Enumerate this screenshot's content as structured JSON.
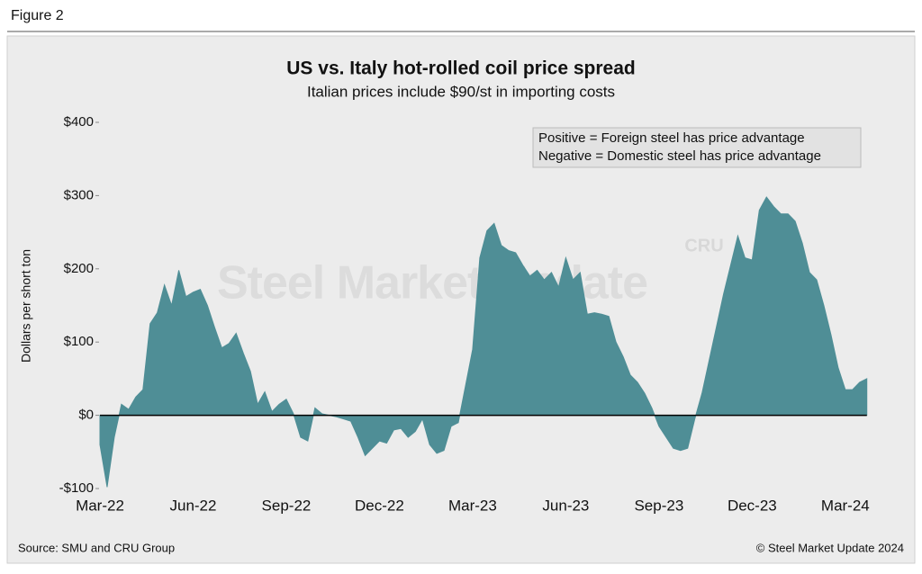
{
  "figure_label": "Figure 2",
  "chart_data": {
    "type": "area",
    "title": "US vs. Italy hot-rolled coil price spread",
    "subtitle": "Italian prices include $90/st in importing costs",
    "ylabel": "Dollars per short ton",
    "annotations": [
      "Positive = Foreign steel has price advantage",
      "Negative = Domestic steel has price advantage"
    ],
    "watermark": "Steel Market Update",
    "logo": "CRU",
    "source": "Source: SMU and CRU Group",
    "copyright": "© Steel Market Update 2024",
    "color": "#4f8e96",
    "ylim": [
      -100,
      400
    ],
    "yticks": [
      {
        "value": -100,
        "label": "-$100"
      },
      {
        "value": 0,
        "label": "$0"
      },
      {
        "value": 100,
        "label": "$100"
      },
      {
        "value": 200,
        "label": "$200"
      },
      {
        "value": 300,
        "label": "$300"
      },
      {
        "value": 400,
        "label": "$400"
      }
    ],
    "categories": [
      "Mar-22",
      null,
      null,
      null,
      null,
      null,
      null,
      null,
      null,
      null,
      null,
      null,
      null,
      "Jun-22",
      null,
      null,
      null,
      null,
      null,
      null,
      null,
      null,
      null,
      null,
      null,
      null,
      "Sep-22",
      null,
      null,
      null,
      null,
      null,
      null,
      null,
      null,
      null,
      null,
      null,
      null,
      "Dec-22",
      null,
      null,
      null,
      null,
      null,
      null,
      null,
      null,
      null,
      null,
      null,
      null,
      "Mar-23",
      null,
      null,
      null,
      null,
      null,
      null,
      null,
      null,
      null,
      null,
      null,
      null,
      "Jun-23",
      null,
      null,
      null,
      null,
      null,
      null,
      null,
      null,
      null,
      null,
      null,
      null,
      "Sep-23",
      null,
      null,
      null,
      null,
      null,
      null,
      null,
      null,
      null,
      null,
      null,
      null,
      "Dec-23",
      null,
      null,
      null,
      null,
      null,
      null,
      null,
      null,
      null,
      null,
      null,
      null,
      "Mar-24",
      null,
      null,
      null
    ],
    "values": [
      -40,
      -98,
      -30,
      15,
      8,
      25,
      35,
      125,
      140,
      178,
      150,
      198,
      162,
      168,
      172,
      150,
      120,
      92,
      98,
      112,
      85,
      60,
      15,
      32,
      5,
      15,
      22,
      2,
      -30,
      -35,
      10,
      2,
      0,
      -2,
      -5,
      -8,
      -30,
      -55,
      -45,
      -35,
      -38,
      -20,
      -18,
      -30,
      -22,
      -5,
      -40,
      -52,
      -48,
      -15,
      -10,
      40,
      90,
      215,
      252,
      262,
      232,
      225,
      222,
      205,
      190,
      198,
      185,
      195,
      175,
      215,
      185,
      195,
      138,
      140,
      138,
      135,
      100,
      80,
      55,
      45,
      30,
      10,
      -15,
      -30,
      -45,
      -48,
      -45,
      -5,
      30,
      75,
      120,
      165,
      205,
      245,
      215,
      212,
      280,
      298,
      285,
      275,
      275,
      265,
      235,
      195,
      185,
      150,
      110,
      65,
      35,
      35,
      45,
      50
    ]
  }
}
